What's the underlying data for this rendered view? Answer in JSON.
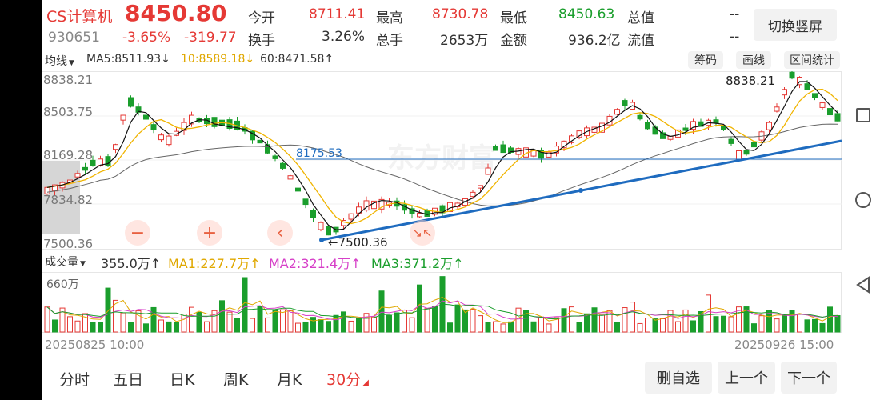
{
  "header": {
    "name": "CS计算机",
    "code": "930651",
    "price": "8450.80",
    "change_pct": "-3.65%",
    "change_abs": "-319.77",
    "open_label": "今开",
    "open": "8711.41",
    "high_label": "最高",
    "high": "8730.78",
    "low_label": "最低",
    "low": "8450.63",
    "mktcap_label": "总值",
    "mktcap": "--",
    "turnover_label": "换手",
    "turnover": "3.26%",
    "hands_label": "总手",
    "hands": "2653万",
    "amount_label": "金额",
    "amount": "936.2亿",
    "float_label": "流值",
    "float": "--",
    "switch_button": "切换竖屏"
  },
  "ma_bar": {
    "selector": "均线",
    "ma5": "MA5:8511.93↓",
    "ma10": "10:8589.18↓",
    "ma60": "60:8471.58↑",
    "chips_button": "筹码",
    "draw_button": "画线",
    "range_button": "区间统计"
  },
  "price_chart": {
    "y_labels": [
      "8838.21",
      "8503.75",
      "8169.28",
      "7834.82",
      "7500.36"
    ],
    "max_label": "8838.21",
    "min_label": "←7500.36",
    "hline_label": "8175.53",
    "watermark": "东方财富"
  },
  "volume_bar": {
    "selector": "成交量",
    "vol": "355.0万↑",
    "ma1": "MA1:227.7万↑",
    "ma2": "MA2:321.4万↑",
    "ma3": "MA3:371.2万↑",
    "max_label": "660万"
  },
  "dates": {
    "start": "20250825 10:00",
    "end": "20250926 15:00"
  },
  "tabs": [
    "分时",
    "五日",
    "日K",
    "周K",
    "月K",
    "30分"
  ],
  "actions": {
    "remove_fav": "删自选",
    "prev": "上一个",
    "next": "下一个"
  },
  "colors": {
    "up": "#e53935",
    "down": "#1a9e2c",
    "trend": "#1e6bbf"
  }
}
